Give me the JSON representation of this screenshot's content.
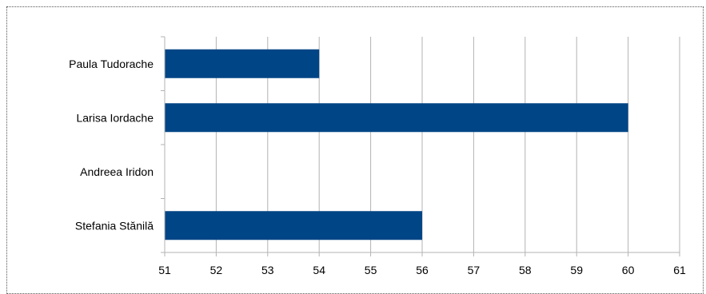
{
  "chart_data": {
    "type": "bar",
    "orientation": "horizontal",
    "categories": [
      "Paula Tudorache",
      "Larisa Iordache",
      "Andreea Iridon",
      "Stefania Stănilă"
    ],
    "values": [
      54,
      60,
      51,
      56
    ],
    "xlim": [
      51,
      61
    ],
    "xticks": [
      "51",
      "52",
      "53",
      "54",
      "55",
      "56",
      "57",
      "58",
      "59",
      "60",
      "61"
    ],
    "grid": true,
    "legend": "none",
    "bar_color": "#004586",
    "grid_color": "#b3b3b3"
  }
}
